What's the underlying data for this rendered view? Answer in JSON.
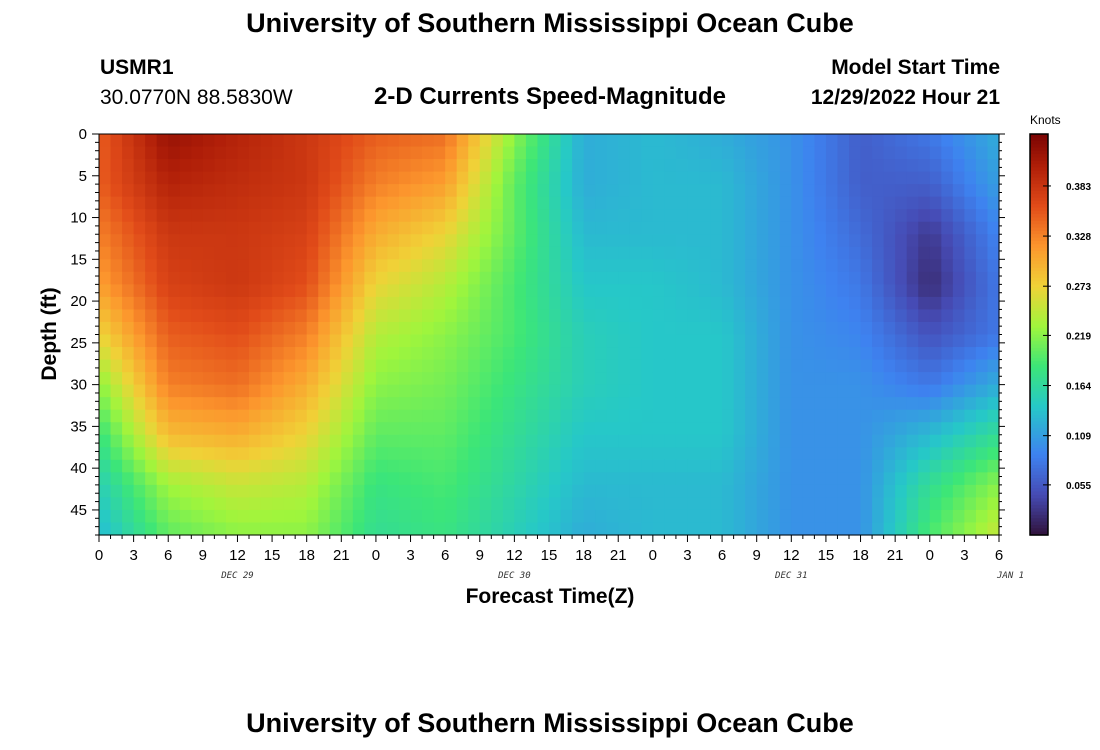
{
  "header": {
    "title": "University of Southern Mississippi Ocean Cube",
    "station": "USMR1",
    "coords": "30.0770N  88.5830W",
    "subtitle": "2-D Currents Speed-Magnitude",
    "model_start_label": "Model Start Time",
    "model_start_value": "12/29/2022 Hour 21"
  },
  "footer": {
    "title": "University of Southern Mississippi Ocean Cube"
  },
  "chart_data": {
    "type": "heatmap",
    "title": "2-D Currents Speed-Magnitude",
    "xlabel": "Forecast Time(Z)",
    "ylabel": "Depth (ft)",
    "x_tick_labels": [
      "0",
      "3",
      "6",
      "9",
      "12",
      "15",
      "18",
      "21",
      "0",
      "3",
      "6",
      "9",
      "12",
      "15",
      "18",
      "21",
      "0",
      "3",
      "6",
      "9",
      "12",
      "15",
      "18",
      "21",
      "0",
      "3",
      "6"
    ],
    "x_range_hours": [
      0,
      78
    ],
    "date_labels": [
      {
        "text": "DEC 29",
        "hour": 12
      },
      {
        "text": "DEC 30",
        "hour": 36
      },
      {
        "text": "DEC 31",
        "hour": 60
      },
      {
        "text": "JAN 1",
        "hour": 79
      }
    ],
    "y_tick_labels": [
      "0",
      "5",
      "10",
      "15",
      "20",
      "25",
      "30",
      "35",
      "40",
      "45"
    ],
    "ylim": [
      0,
      48
    ],
    "y_inverted": true,
    "colorbar": {
      "title": "Knots",
      "ticks": [
        "0.383",
        "0.328",
        "0.273",
        "0.219",
        "0.164",
        "0.109",
        "0.055"
      ],
      "range": [
        0,
        0.44
      ]
    },
    "depths_ft": [
      0,
      6,
      12,
      18,
      24,
      30,
      36,
      42,
      48
    ],
    "hours": [
      0,
      6,
      12,
      18,
      24,
      30,
      36,
      42,
      48,
      54,
      60,
      66,
      72,
      78
    ],
    "speed_knots": [
      [
        0.35,
        0.42,
        0.4,
        0.38,
        0.35,
        0.34,
        0.22,
        0.12,
        0.13,
        0.12,
        0.1,
        0.06,
        0.08,
        0.12
      ],
      [
        0.35,
        0.4,
        0.39,
        0.38,
        0.33,
        0.31,
        0.2,
        0.12,
        0.13,
        0.13,
        0.1,
        0.06,
        0.06,
        0.11
      ],
      [
        0.33,
        0.38,
        0.38,
        0.37,
        0.3,
        0.27,
        0.2,
        0.13,
        0.13,
        0.13,
        0.1,
        0.07,
        0.03,
        0.09
      ],
      [
        0.31,
        0.37,
        0.38,
        0.36,
        0.27,
        0.24,
        0.19,
        0.14,
        0.14,
        0.13,
        0.1,
        0.08,
        0.02,
        0.08
      ],
      [
        0.27,
        0.35,
        0.36,
        0.33,
        0.24,
        0.22,
        0.19,
        0.15,
        0.14,
        0.14,
        0.1,
        0.09,
        0.05,
        0.08
      ],
      [
        0.22,
        0.33,
        0.34,
        0.3,
        0.22,
        0.21,
        0.18,
        0.15,
        0.14,
        0.14,
        0.1,
        0.1,
        0.08,
        0.12
      ],
      [
        0.18,
        0.29,
        0.3,
        0.27,
        0.2,
        0.2,
        0.17,
        0.14,
        0.14,
        0.14,
        0.1,
        0.1,
        0.13,
        0.17
      ],
      [
        0.15,
        0.23,
        0.25,
        0.24,
        0.18,
        0.19,
        0.16,
        0.13,
        0.13,
        0.13,
        0.1,
        0.1,
        0.17,
        0.22
      ],
      [
        0.13,
        0.2,
        0.22,
        0.22,
        0.17,
        0.18,
        0.15,
        0.12,
        0.13,
        0.13,
        0.1,
        0.1,
        0.19,
        0.25
      ]
    ]
  }
}
